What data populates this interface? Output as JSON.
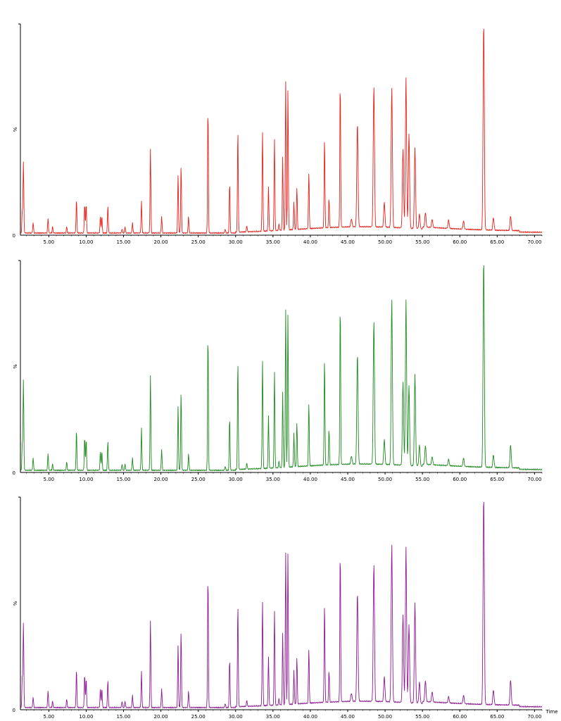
{
  "chart_data": [
    {
      "type": "line",
      "color": "#e8201a",
      "ylabel": "%",
      "yzero": "0",
      "xlim": [
        1.2,
        71
      ],
      "ylim": [
        0,
        100
      ],
      "xticks": [
        "5.00",
        "10.00",
        "15.00",
        "20.00",
        "25.00",
        "30.00",
        "35.00",
        "40.00",
        "45.00",
        "50.00",
        "55.00",
        "60.00",
        "65.00",
        "70.00"
      ],
      "xlabel": "",
      "series": [
        {
          "peaks": [
            [
              1.6,
              34
            ],
            [
              1.45,
              10
            ],
            [
              2.9,
              5
            ],
            [
              4.9,
              7
            ],
            [
              5.5,
              3
            ],
            [
              7.4,
              3
            ],
            [
              8.7,
              16
            ],
            [
              9.8,
              14
            ],
            [
              10.0,
              14
            ],
            [
              11.9,
              8
            ],
            [
              12.1,
              8
            ],
            [
              12.9,
              13
            ],
            [
              14.8,
              2
            ],
            [
              15.2,
              3
            ],
            [
              16.2,
              5
            ],
            [
              17.4,
              15
            ],
            [
              18.6,
              40
            ],
            [
              20.1,
              8
            ],
            [
              22.3,
              28
            ],
            [
              22.7,
              32
            ],
            [
              23.7,
              8
            ],
            [
              26.3,
              60
            ],
            [
              28.6,
              2
            ],
            [
              29.2,
              24
            ],
            [
              30.3,
              49
            ],
            [
              31.5,
              3
            ],
            [
              33.6,
              48
            ],
            [
              34.4,
              21
            ],
            [
              35.2,
              44
            ],
            [
              35.8,
              3
            ],
            [
              36.3,
              35
            ],
            [
              36.7,
              71
            ],
            [
              37.0,
              67
            ],
            [
              37.8,
              13
            ],
            [
              38.2,
              20
            ],
            [
              39.8,
              27
            ],
            [
              41.9,
              43
            ],
            [
              42.5,
              14
            ],
            [
              44.0,
              70
            ],
            [
              45.5,
              4
            ],
            [
              46.3,
              50
            ],
            [
              48.5,
              68
            ],
            [
              49.9,
              12
            ],
            [
              50.9,
              67
            ],
            [
              52.4,
              38
            ],
            [
              52.8,
              72
            ],
            [
              53.2,
              45
            ],
            [
              54.0,
              39
            ],
            [
              54.6,
              7
            ],
            [
              55.4,
              7
            ],
            [
              56.3,
              4
            ],
            [
              58.5,
              4
            ],
            [
              60.5,
              4
            ],
            [
              63.2,
              100
            ],
            [
              64.5,
              6
            ],
            [
              66.8,
              7
            ]
          ]
        }
      ]
    },
    {
      "type": "line",
      "color": "#1f8a1f",
      "ylabel": "%",
      "yzero": "0",
      "xlim": [
        1.2,
        71
      ],
      "ylim": [
        0,
        100
      ],
      "xticks": [
        "5.00",
        "10.00",
        "15.00",
        "20.00",
        "25.00",
        "30.00",
        "35.00",
        "40.00",
        "45.00",
        "50.00",
        "55.00",
        "60.00",
        "65.00",
        "70.00"
      ],
      "xlabel": "",
      "series": [
        {
          "peaks": [
            [
              1.6,
              43
            ],
            [
              1.45,
              12
            ],
            [
              2.9,
              6
            ],
            [
              4.9,
              8
            ],
            [
              5.5,
              3
            ],
            [
              7.4,
              4
            ],
            [
              8.7,
              19
            ],
            [
              9.8,
              16
            ],
            [
              10.0,
              15
            ],
            [
              11.9,
              9
            ],
            [
              12.1,
              9
            ],
            [
              12.9,
              14
            ],
            [
              14.8,
              3
            ],
            [
              15.2,
              3
            ],
            [
              16.2,
              6
            ],
            [
              17.4,
              20
            ],
            [
              18.6,
              45
            ],
            [
              20.1,
              10
            ],
            [
              22.3,
              31
            ],
            [
              22.7,
              37
            ],
            [
              23.7,
              8
            ],
            [
              26.3,
              65
            ],
            [
              28.6,
              2
            ],
            [
              29.2,
              25
            ],
            [
              30.3,
              52
            ],
            [
              31.5,
              3
            ],
            [
              33.6,
              52
            ],
            [
              34.4,
              25
            ],
            [
              35.2,
              46
            ],
            [
              35.8,
              3
            ],
            [
              36.3,
              36
            ],
            [
              36.7,
              75
            ],
            [
              37.0,
              73
            ],
            [
              37.8,
              16
            ],
            [
              38.2,
              21
            ],
            [
              39.8,
              30
            ],
            [
              41.9,
              51
            ],
            [
              42.5,
              17
            ],
            [
              44.0,
              77
            ],
            [
              45.5,
              4
            ],
            [
              46.3,
              53
            ],
            [
              48.5,
              69
            ],
            [
              49.9,
              12
            ],
            [
              50.9,
              79
            ],
            [
              52.4,
              40
            ],
            [
              52.8,
              79
            ],
            [
              53.2,
              38
            ],
            [
              54.0,
              44
            ],
            [
              54.6,
              10
            ],
            [
              55.4,
              9
            ],
            [
              56.3,
              4
            ],
            [
              58.5,
              3
            ],
            [
              60.5,
              4
            ],
            [
              63.2,
              100
            ],
            [
              64.5,
              6
            ],
            [
              66.8,
              11
            ]
          ]
        }
      ]
    },
    {
      "type": "line",
      "color": "#8e1a94",
      "ylabel": "%",
      "yzero": "0",
      "xlim": [
        1.2,
        71
      ],
      "ylim": [
        0,
        100
      ],
      "xticks": [
        "5.00",
        "10.00",
        "15.00",
        "20.00",
        "25.00",
        "30.00",
        "35.00",
        "40.00",
        "45.00",
        "50.00",
        "55.00",
        "60.00",
        "65.00",
        "70.00"
      ],
      "xlabel": "Time",
      "series": [
        {
          "peaks": [
            [
              1.6,
              40
            ],
            [
              1.45,
              14
            ],
            [
              2.9,
              5
            ],
            [
              4.9,
              8
            ],
            [
              5.5,
              3
            ],
            [
              7.4,
              4
            ],
            [
              8.7,
              18
            ],
            [
              9.8,
              16
            ],
            [
              10.0,
              14
            ],
            [
              11.9,
              9
            ],
            [
              12.1,
              9
            ],
            [
              12.9,
              13
            ],
            [
              14.8,
              3
            ],
            [
              15.2,
              3
            ],
            [
              16.2,
              6
            ],
            [
              17.4,
              17
            ],
            [
              18.6,
              41
            ],
            [
              20.1,
              9
            ],
            [
              22.3,
              30
            ],
            [
              22.7,
              36
            ],
            [
              23.7,
              8
            ],
            [
              26.3,
              63
            ],
            [
              28.6,
              2
            ],
            [
              29.2,
              23
            ],
            [
              30.3,
              49
            ],
            [
              31.5,
              3
            ],
            [
              33.6,
              50
            ],
            [
              34.4,
              23
            ],
            [
              35.2,
              45
            ],
            [
              35.8,
              3
            ],
            [
              36.3,
              34
            ],
            [
              36.7,
              72
            ],
            [
              37.0,
              72
            ],
            [
              37.8,
              16
            ],
            [
              38.2,
              22
            ],
            [
              39.8,
              26
            ],
            [
              41.9,
              47
            ],
            [
              42.5,
              15
            ],
            [
              44.0,
              72
            ],
            [
              45.5,
              4
            ],
            [
              46.3,
              52
            ],
            [
              48.5,
              66
            ],
            [
              49.9,
              12
            ],
            [
              50.9,
              75
            ],
            [
              52.4,
              42
            ],
            [
              52.8,
              74
            ],
            [
              53.2,
              37
            ],
            [
              54.0,
              48
            ],
            [
              54.6,
              10
            ],
            [
              55.4,
              10
            ],
            [
              56.3,
              5
            ],
            [
              58.5,
              3
            ],
            [
              60.5,
              4
            ],
            [
              63.2,
              100
            ],
            [
              64.5,
              7
            ],
            [
              66.8,
              12
            ]
          ]
        }
      ]
    }
  ]
}
